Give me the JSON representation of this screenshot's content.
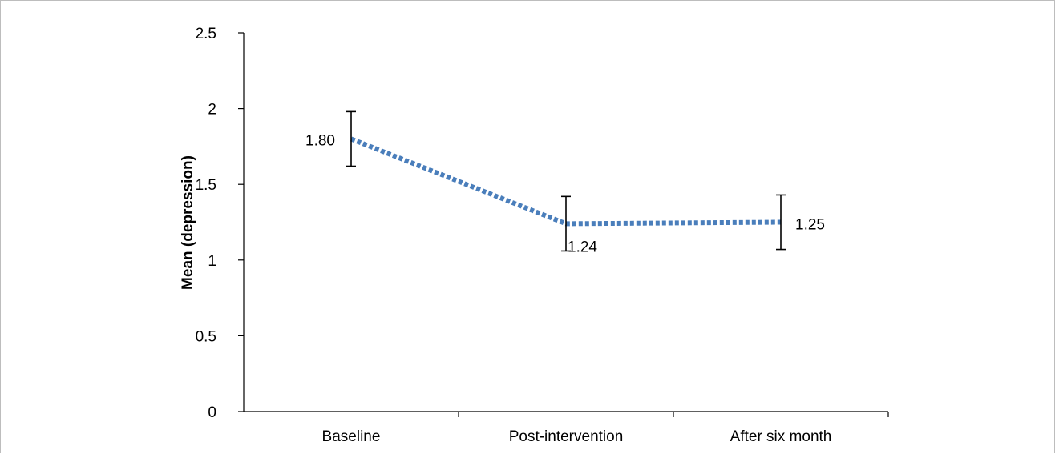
{
  "chart_data": {
    "type": "line",
    "title": "",
    "xlabel": "",
    "ylabel": "Mean (depression)",
    "categories": [
      "Baseline",
      "Post-intervention",
      "After six month"
    ],
    "series": [
      {
        "values": [
          1.8,
          1.24,
          1.25
        ],
        "error_upper": [
          1.98,
          1.42,
          1.43
        ],
        "error_lower": [
          1.62,
          1.06,
          1.07
        ],
        "data_labels": [
          "1.80",
          "1.24",
          "1.25"
        ],
        "color": "#4a7ebb",
        "line_style": "dotted"
      }
    ],
    "ylim": [
      0,
      2.5
    ],
    "yticks": [
      0,
      0.5,
      1,
      1.5,
      2,
      2.5
    ],
    "ytick_labels": [
      "0",
      "0.5",
      "1",
      "1.5",
      "2",
      "2.5"
    ],
    "grid": false,
    "legend": "none"
  }
}
